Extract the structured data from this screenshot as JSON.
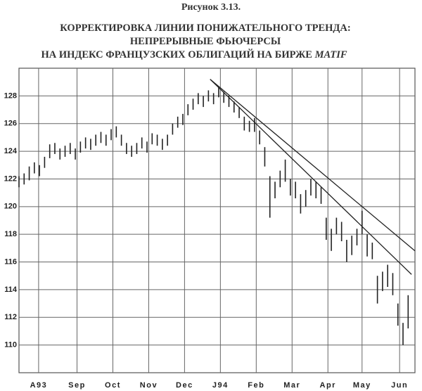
{
  "chart_data": {
    "type": "range",
    "figure_label": "Рисунок 3.13.",
    "title_lines": [
      "КОРРЕКТИРОВКА ЛИНИИ ПОНИЖАТЕЛЬНОГО ТРЕНДА:",
      "НЕПРЕРЫВНЫЕ ФЬЮЧЕРСЫ",
      "НА ИНДЕКС ФРАНЦУЗСКИХ ОБЛИГАЦИЙ НА БИРЖЕ"
    ],
    "title_italic": "MATIF",
    "color": "#222",
    "x": [
      0,
      3,
      6,
      9,
      12,
      15,
      18,
      21,
      24,
      27,
      30,
      33,
      36,
      39,
      42,
      45,
      48,
      51,
      54,
      57,
      60,
      63,
      66,
      69,
      72,
      75,
      78,
      81,
      84,
      87,
      90,
      93,
      96,
      99,
      102,
      105,
      108,
      111,
      114,
      117,
      120,
      123,
      126,
      129,
      132,
      135,
      138,
      141,
      144,
      147,
      150,
      153,
      156,
      159,
      162,
      165,
      168,
      171,
      174,
      177,
      180,
      183,
      186,
      189,
      192,
      195,
      198,
      201,
      204,
      207,
      210,
      213,
      216,
      219,
      222,
      225,
      228
    ],
    "high": [
      122.2,
      122.4,
      122.9,
      123.2,
      123.0,
      123.6,
      124.5,
      124.6,
      124.2,
      124.4,
      124.6,
      124.2,
      124.7,
      125.0,
      124.9,
      125.2,
      125.4,
      125.2,
      125.6,
      125.8,
      125.2,
      124.6,
      124.4,
      124.6,
      125.0,
      124.7,
      125.3,
      125.2,
      124.9,
      125.2,
      126.0,
      126.5,
      126.7,
      127.4,
      127.8,
      128.2,
      128.0,
      128.4,
      128.2,
      128.7,
      128.3,
      128.0,
      127.6,
      127.2,
      126.5,
      126.2,
      126.4,
      125.5,
      124.3,
      122.2,
      121.8,
      122.6,
      123.4,
      122.0,
      121.8,
      120.9,
      121.2,
      122.0,
      121.8,
      121.4,
      119.2,
      118.4,
      119.2,
      118.9,
      117.6,
      117.9,
      118.4,
      119.7,
      118.0,
      117.4,
      115.0,
      115.3,
      115.8,
      115.2,
      113.0,
      111.6,
      113.6
    ],
    "low": [
      121.4,
      121.6,
      121.9,
      122.4,
      122.2,
      122.8,
      123.5,
      123.8,
      123.4,
      123.6,
      123.8,
      123.4,
      123.9,
      124.2,
      124.1,
      124.4,
      124.6,
      124.4,
      124.8,
      125.0,
      124.4,
      123.8,
      123.6,
      123.8,
      124.2,
      123.9,
      124.5,
      124.4,
      124.1,
      124.4,
      125.2,
      125.7,
      125.9,
      126.6,
      127.0,
      127.4,
      127.2,
      127.6,
      127.4,
      127.9,
      127.5,
      127.2,
      126.8,
      126.4,
      125.5,
      125.4,
      125.4,
      124.5,
      122.9,
      119.2,
      120.6,
      121.4,
      121.8,
      120.8,
      120.6,
      119.5,
      120.0,
      120.8,
      120.6,
      120.2,
      117.6,
      116.8,
      118.0,
      117.5,
      116.0,
      116.5,
      117.2,
      118.0,
      116.4,
      116.2,
      113.0,
      113.9,
      114.2,
      113.6,
      111.4,
      110.0,
      111.2
    ],
    "trendlines": [
      {
        "x": [
          112,
          232
        ],
        "y": [
          129.2,
          116.8
        ]
      },
      {
        "x": [
          112,
          230
        ],
        "y": [
          129.2,
          115.1
        ]
      }
    ],
    "xlim": [
      0,
      232
    ],
    "xticks": [
      {
        "value": 11.5,
        "label": "A93"
      },
      {
        "value": 34,
        "label": "Sep"
      },
      {
        "value": 55,
        "label": "Oct"
      },
      {
        "value": 76,
        "label": "Nov"
      },
      {
        "value": 97,
        "label": "Dec"
      },
      {
        "value": 118,
        "label": "J94"
      },
      {
        "value": 139,
        "label": "Feb"
      },
      {
        "value": 160,
        "label": "Mar"
      },
      {
        "value": 181,
        "label": "Apr"
      },
      {
        "value": 201,
        "label": "May"
      },
      {
        "value": 223,
        "label": "Jun"
      }
    ],
    "ylim": [
      108,
      130
    ],
    "yticks": [
      110,
      112,
      114,
      116,
      118,
      120,
      122,
      124,
      126,
      128
    ],
    "grid": true
  }
}
